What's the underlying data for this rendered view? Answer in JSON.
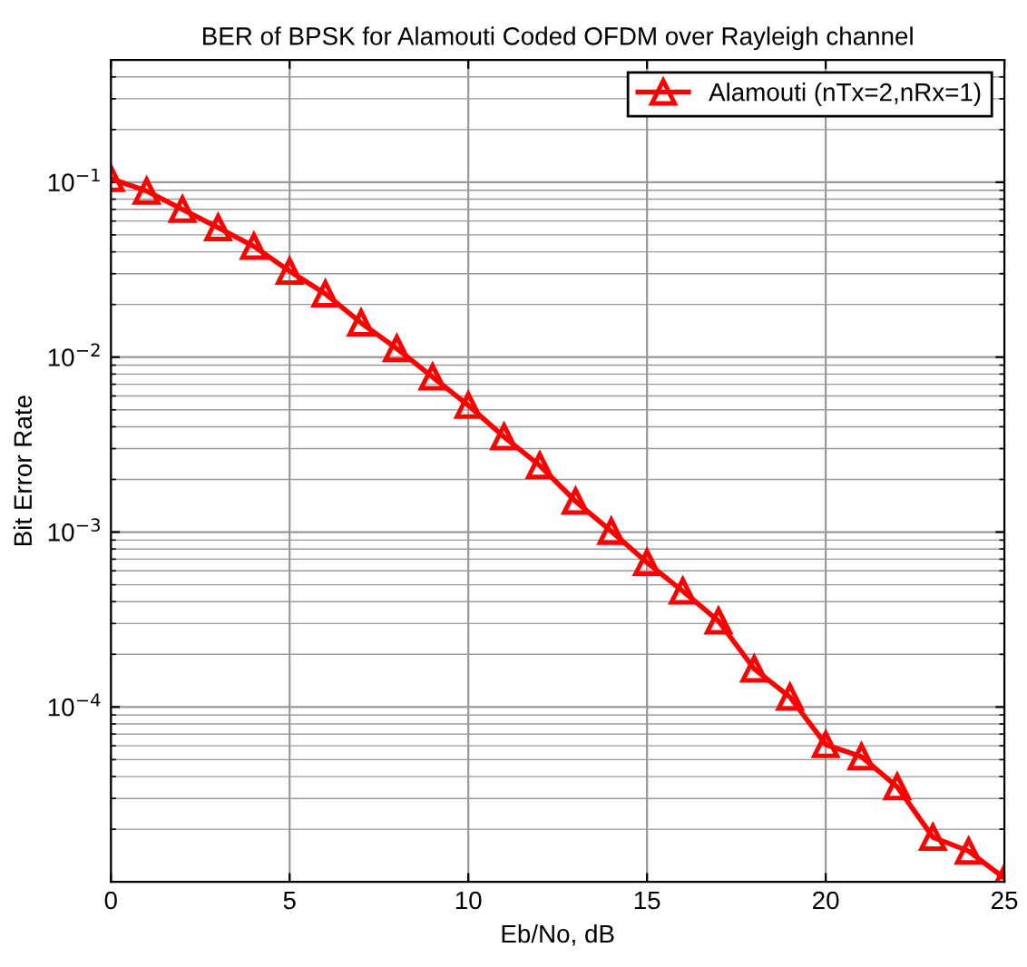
{
  "chart_data": {
    "type": "line",
    "title": "BER of BPSK for Alamouti Coded OFDM over Rayleigh channel",
    "xlabel": "Eb/No, dB",
    "ylabel": "Bit Error Rate",
    "x": [
      0,
      1,
      2,
      3,
      4,
      5,
      6,
      7,
      8,
      9,
      10,
      11,
      12,
      13,
      14,
      15,
      16,
      17,
      18,
      19,
      20,
      21,
      22,
      23,
      24,
      25
    ],
    "series": [
      {
        "name": "Alamouti (nTx=2,nRx=1)",
        "color": "#ff0000",
        "values": [
          0.105,
          0.089,
          0.07,
          0.055,
          0.043,
          0.031,
          0.023,
          0.0157,
          0.0112,
          0.0077,
          0.0053,
          0.0035,
          0.0024,
          0.0015,
          0.00101,
          0.00067,
          0.00046,
          0.00031,
          0.000165,
          0.000114,
          6.1e-05,
          5.2e-05,
          3.5e-05,
          1.8e-05,
          1.5e-05,
          1.05e-05
        ]
      }
    ],
    "log": "y",
    "xlim": [
      0,
      25
    ],
    "ylim": [
      1e-05,
      0.5
    ],
    "xticks": [
      0,
      5,
      10,
      15,
      20,
      25
    ],
    "yticks": [
      {
        "value": 0.1,
        "label": "10$^{−1}$"
      },
      {
        "value": 0.01,
        "label": "10$^{−2}$"
      },
      {
        "value": 0.001,
        "label": "10$^{−3}$"
      },
      {
        "value": 0.0001,
        "label": "10$^{−4}$"
      }
    ],
    "grid": true,
    "legend": "top right",
    "marker": "triangle",
    "line_style": "solid"
  }
}
